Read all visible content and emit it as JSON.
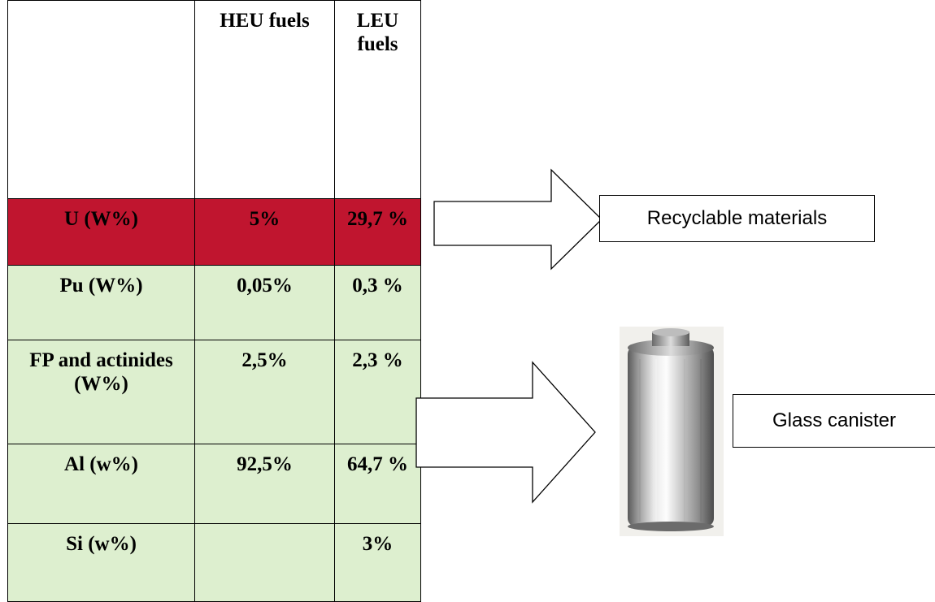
{
  "table": {
    "headers": [
      "",
      "HEU fuels",
      "LEU fuels"
    ],
    "rows": [
      {
        "label": "U (W%)",
        "heu": "5%",
        "leu": "29,7 %",
        "highlight": true
      },
      {
        "label": "Pu (W%)",
        "heu": "0,05%",
        "leu": "0,3 %",
        "highlight": false
      },
      {
        "label": "FP and actinides (W%)",
        "heu": "2,5%",
        "leu": "2,3 %",
        "highlight": false
      },
      {
        "label": "Al (w%)",
        "heu": "92,5%",
        "leu": "64,7 %",
        "highlight": false
      },
      {
        "label": "Si (w%)",
        "heu": "",
        "leu": "3%",
        "highlight": false
      }
    ]
  },
  "labels": {
    "recyclable": "Recyclable materials",
    "glass": "Glass canister"
  },
  "colors": {
    "highlight_row": "#c0152f",
    "normal_row": "#ddefcf",
    "border": "#000000"
  },
  "icons": {
    "canister": "metal-canister-photo",
    "arrows": "block-arrow-right"
  }
}
